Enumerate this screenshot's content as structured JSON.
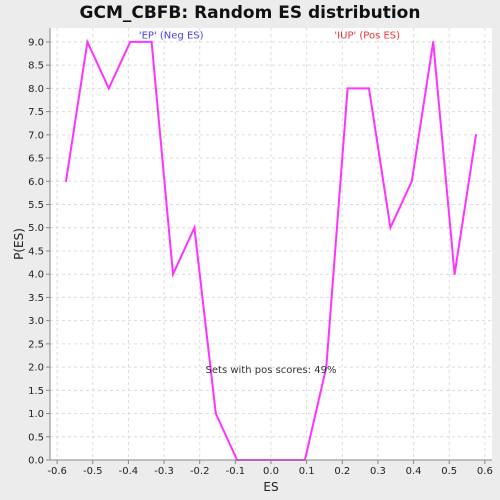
{
  "chart_data": {
    "type": "line",
    "title": "GCM_CBFB: Random ES distribution",
    "xlabel": "ES",
    "ylabel": "P(ES)",
    "xlim": [
      -0.62,
      0.62
    ],
    "ylim": [
      0.0,
      9.3
    ],
    "xticks": [
      -0.6,
      -0.5,
      -0.4,
      -0.3,
      -0.2,
      -0.1,
      0.0,
      0.1,
      0.2,
      0.3,
      0.4,
      0.5,
      0.6
    ],
    "xtick_labels": [
      "-0.6",
      "-0.5",
      "-0.4",
      "-0.3",
      "-0.2",
      "-0.1",
      "0.0",
      "0.1",
      "0.2",
      "0.3",
      "0.4",
      "0.5",
      "0.6"
    ],
    "yticks": [
      0.0,
      0.5,
      1.0,
      1.5,
      2.0,
      2.5,
      3.0,
      3.5,
      4.0,
      4.5,
      5.0,
      5.5,
      6.0,
      6.5,
      7.0,
      7.5,
      8.0,
      8.5,
      9.0
    ],
    "ytick_labels": [
      "0.0",
      "0.5",
      "1.0",
      "1.5",
      "2.0",
      "2.5",
      "3.0",
      "3.5",
      "4.0",
      "4.5",
      "5.0",
      "5.5",
      "6.0",
      "6.5",
      "7.0",
      "7.5",
      "8.0",
      "8.5",
      "9.0"
    ],
    "grid": true,
    "series": [
      {
        "color": "#ff33ff",
        "x": [
          -0.575,
          -0.515,
          -0.455,
          -0.395,
          -0.335,
          -0.275,
          -0.215,
          -0.155,
          -0.095,
          -0.035,
          0.025,
          0.095,
          0.155,
          0.215,
          0.275,
          0.335,
          0.395,
          0.455,
          0.515,
          0.575
        ],
        "y": [
          6,
          9,
          8,
          9,
          9,
          4,
          5,
          1,
          0,
          0,
          0,
          0,
          2,
          8,
          8,
          5,
          6,
          9,
          4,
          7
        ]
      }
    ],
    "annotations": [
      {
        "text": "'EP' (Neg ES)",
        "color": "#4444dd",
        "x": -0.28,
        "y": 9.15
      },
      {
        "text": "'IUP' (Pos ES)",
        "color": "#ee3333",
        "x": 0.27,
        "y": 9.15
      },
      {
        "text": "Sets with pos scores: 49%",
        "color": "#333333",
        "x": 0.0,
        "y": 1.95
      }
    ]
  }
}
